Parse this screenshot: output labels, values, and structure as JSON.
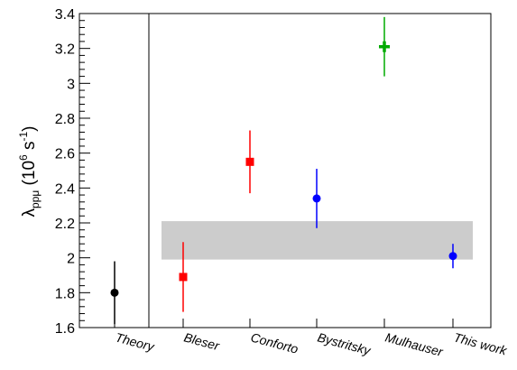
{
  "chart_data": {
    "type": "scatter",
    "title": "",
    "ylabel": {
      "symbol": "λ",
      "subscript": "ppμ",
      "open": " (10",
      "exponent_1": "6",
      "unit": " s",
      "exponent_2": "-1",
      "close": ")"
    },
    "xlabel": "",
    "ylim": [
      1.6,
      3.4
    ],
    "yticks": [
      1.6,
      1.8,
      2,
      2.2,
      2.4,
      2.6,
      2.8,
      3,
      3.2,
      3.4
    ],
    "ytick_labels": [
      "1.6",
      "1.8",
      "2",
      "2.2",
      "2.4",
      "2.6",
      "2.8",
      "3",
      "3.2",
      "3.4"
    ],
    "categories": [
      "Theory",
      "Bleser",
      "Conforto",
      "Bystritsky",
      "Mulhauser",
      "This work"
    ],
    "grid": false,
    "points": [
      {
        "category": "Theory",
        "value": 1.8,
        "err_low": 1.62,
        "err_high": 1.98,
        "marker": "circle",
        "color": "#000000"
      },
      {
        "category": "Bleser",
        "value": 1.89,
        "err_low": 1.69,
        "err_high": 2.09,
        "marker": "square",
        "color": "#ff0000"
      },
      {
        "category": "Conforto",
        "value": 2.55,
        "err_low": 2.37,
        "err_high": 2.73,
        "marker": "square",
        "color": "#ff0000"
      },
      {
        "category": "Bystritsky",
        "value": 2.34,
        "err_low": 2.17,
        "err_high": 2.51,
        "marker": "circle",
        "color": "#0000ff"
      },
      {
        "category": "Mulhauser",
        "value": 3.21,
        "err_low": 3.04,
        "err_high": 3.38,
        "marker": "cross",
        "color": "#00aa00"
      },
      {
        "category": "This work",
        "value": 2.01,
        "err_low": 1.94,
        "err_high": 2.08,
        "marker": "circle",
        "color": "#0000ff"
      }
    ],
    "band": {
      "low": 1.99,
      "high": 2.21,
      "from_category": "Bleser",
      "to_category": "This work",
      "color": "#cccccc"
    },
    "separator_after": "Theory"
  }
}
